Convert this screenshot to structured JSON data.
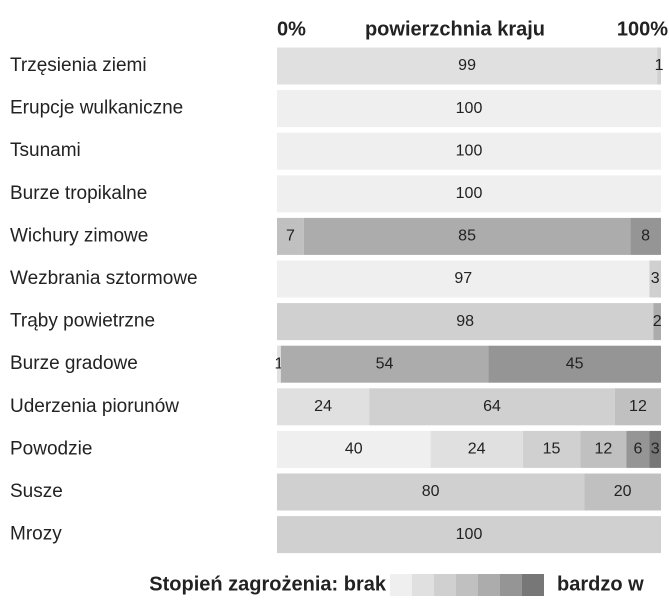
{
  "chart_data": {
    "type": "stacked_barh",
    "xlabel": "powierzchnia kraju",
    "xlim": [
      0,
      100
    ],
    "xticks": [
      {
        "value": 0,
        "label": "0%"
      },
      {
        "value": 100,
        "label": "100%"
      }
    ],
    "categories": [
      "Trzęsienia ziemi",
      "Erupcje wulkaniczne",
      "Tsunami",
      "Burze tropikalne",
      "Wichury zimowe",
      "Wezbrania sztormowe",
      "Trąby powietrzne",
      "Burze gradowe",
      "Uderzenia piorunów",
      "Powodzie",
      "Susze",
      "Mrozy"
    ],
    "series": [
      {
        "color": "#efefef",
        "values": [
          null,
          100,
          100,
          100,
          null,
          97,
          null,
          null,
          null,
          40,
          null,
          null
        ]
      },
      {
        "color": "#e0e0e0",
        "values": [
          99,
          null,
          null,
          null,
          null,
          null,
          null,
          1,
          24,
          24,
          null,
          null
        ]
      },
      {
        "color": "#d0d0d0",
        "values": [
          1,
          null,
          null,
          null,
          null,
          3,
          98,
          null,
          64,
          15,
          80,
          100
        ]
      },
      {
        "color": "#c0c0c0",
        "values": [
          null,
          null,
          null,
          null,
          7,
          null,
          null,
          null,
          12,
          12,
          20,
          null
        ]
      },
      {
        "color": "#acacac",
        "values": [
          null,
          null,
          null,
          null,
          85,
          null,
          2,
          54,
          null,
          null,
          null,
          null
        ]
      },
      {
        "color": "#959595",
        "values": [
          null,
          null,
          null,
          null,
          8,
          null,
          null,
          45,
          null,
          6,
          null,
          null
        ]
      },
      {
        "color": "#777777",
        "values": [
          null,
          null,
          null,
          null,
          null,
          null,
          null,
          null,
          null,
          3,
          null,
          null
        ]
      }
    ],
    "legend_title": "Stopień zagrożenia: brak",
    "legend_end": "bardzo w"
  }
}
